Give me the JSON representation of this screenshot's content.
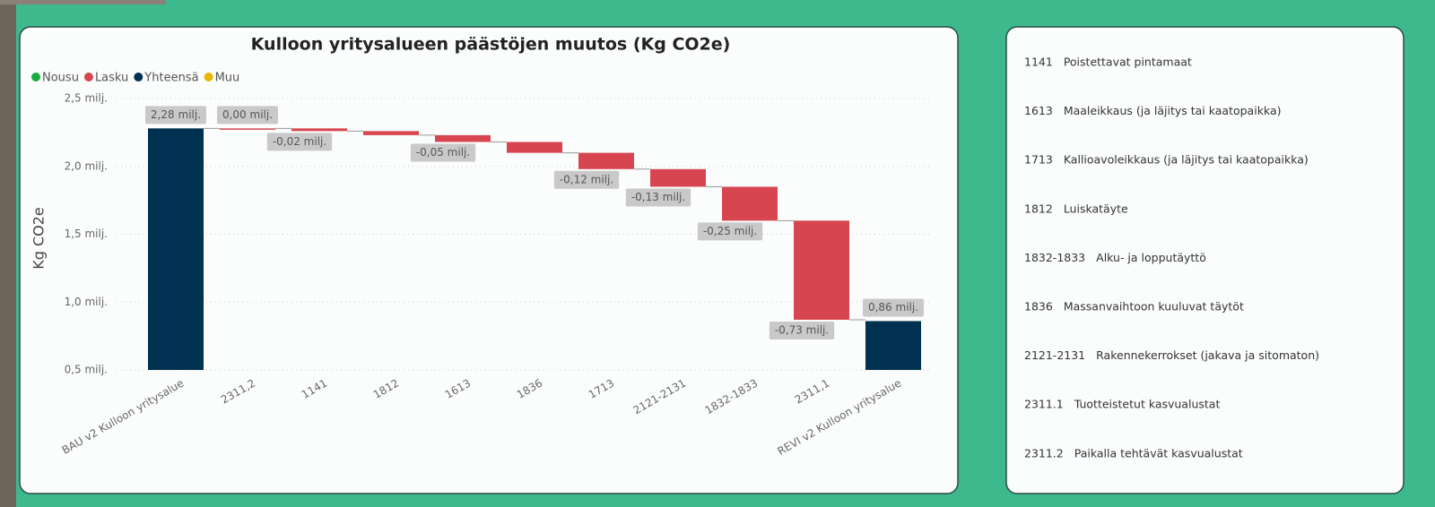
{
  "chart_data": {
    "type": "waterfall",
    "title": "Kulloon yritysalueen päästöjen muutos (Kg CO2e)",
    "y_label": "Kg CO2e",
    "legend": [
      {
        "name": "Nousu",
        "color": "#1aab40"
      },
      {
        "name": "Lasku",
        "color": "#d64550"
      },
      {
        "name": "Yhteensä",
        "color": "#003150"
      },
      {
        "name": "Muu",
        "color": "#e8b600"
      }
    ],
    "categories": [
      "BAU v2 Kulloon yritysalue",
      "2311,2",
      "1141",
      "1812",
      "1613",
      "1836",
      "1713",
      "2121-2131",
      "1832-1833",
      "2311,1",
      "REVI v2 Kulloon yritysalue"
    ],
    "values": [
      2.28,
      0,
      -0.02,
      -0.03,
      -0.05,
      -0.08,
      -0.12,
      -0.13,
      -0.25,
      -0.73,
      0.86
    ],
    "value_labels": [
      "2,28 milj.",
      "0,00 milj.",
      "-0,02 milj.",
      null,
      "-0,05 milj.",
      null,
      "-0,12 milj.",
      "-0,13 milj.",
      "-0,25 milj.",
      "-0,73 milj.",
      "0,86 milj."
    ],
    "bar_types": [
      "Yhteensä",
      "Lasku",
      "Lasku",
      "Lasku",
      "Lasku",
      "Lasku",
      "Lasku",
      "Lasku",
      "Lasku",
      "Lasku",
      "Yhteensä"
    ],
    "ylim": [
      0.5,
      2.5
    ],
    "yticks": [
      {
        "value": 0.5,
        "label": "0,5 milj."
      },
      {
        "value": 1.0,
        "label": "1,0 milj."
      },
      {
        "value": 1.5,
        "label": "1,5 milj."
      },
      {
        "value": 2.0,
        "label": "2,0 milj."
      },
      {
        "value": 2.5,
        "label": "2,5 milj."
      }
    ],
    "grid": true
  },
  "code_list": {
    "items": [
      {
        "code": "1141",
        "label": "Poistettavat pintamaat"
      },
      {
        "code": "1613",
        "label": "Maaleikkaus (ja läjitys tai kaatopaikka)"
      },
      {
        "code": "1713",
        "label": "Kallioavoleikkaus (ja läjitys tai kaatopaikka)"
      },
      {
        "code": "1812",
        "label": "Luiskatäyte"
      },
      {
        "code": "1832-1833",
        "label": "Alku- ja lopputäyttö"
      },
      {
        "code": "1836",
        "label": "Massanvaihtoon kuuluvat täytöt"
      },
      {
        "code": "2121-2131",
        "label": "Rakennekerrokset (jakava ja sitomaton)"
      },
      {
        "code": "2311.1",
        "label": "Tuotteistetut kasvualustat"
      },
      {
        "code": "2311.2",
        "label": "Paikalla tehtävät kasvualustat"
      }
    ]
  }
}
